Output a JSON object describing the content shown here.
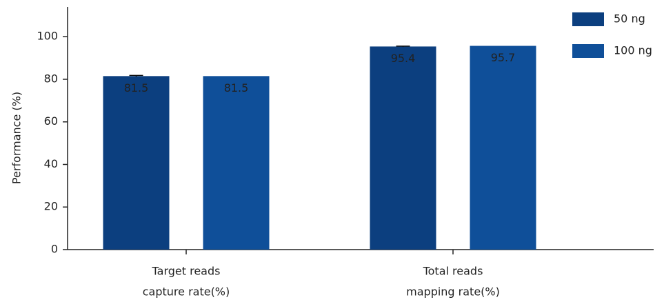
{
  "chart_data": {
    "type": "bar",
    "y_label": "Performance (%)",
    "categories": [
      [
        "Target reads",
        "capture rate(%)"
      ],
      [
        "Total reads",
        "mapping rate(%)"
      ]
    ],
    "series": [
      {
        "name": "50 ng",
        "color": "#0c3f7f",
        "values": [
          81.5,
          95.4
        ],
        "errors": [
          0.3,
          0.2
        ]
      },
      {
        "name": "100 ng",
        "color": "#0f4f99",
        "values": [
          81.5,
          95.7
        ]
      }
    ],
    "ylim": [
      0,
      114
    ],
    "yticks": [
      0,
      20,
      40,
      60,
      80,
      100
    ],
    "legend": "top-right"
  }
}
